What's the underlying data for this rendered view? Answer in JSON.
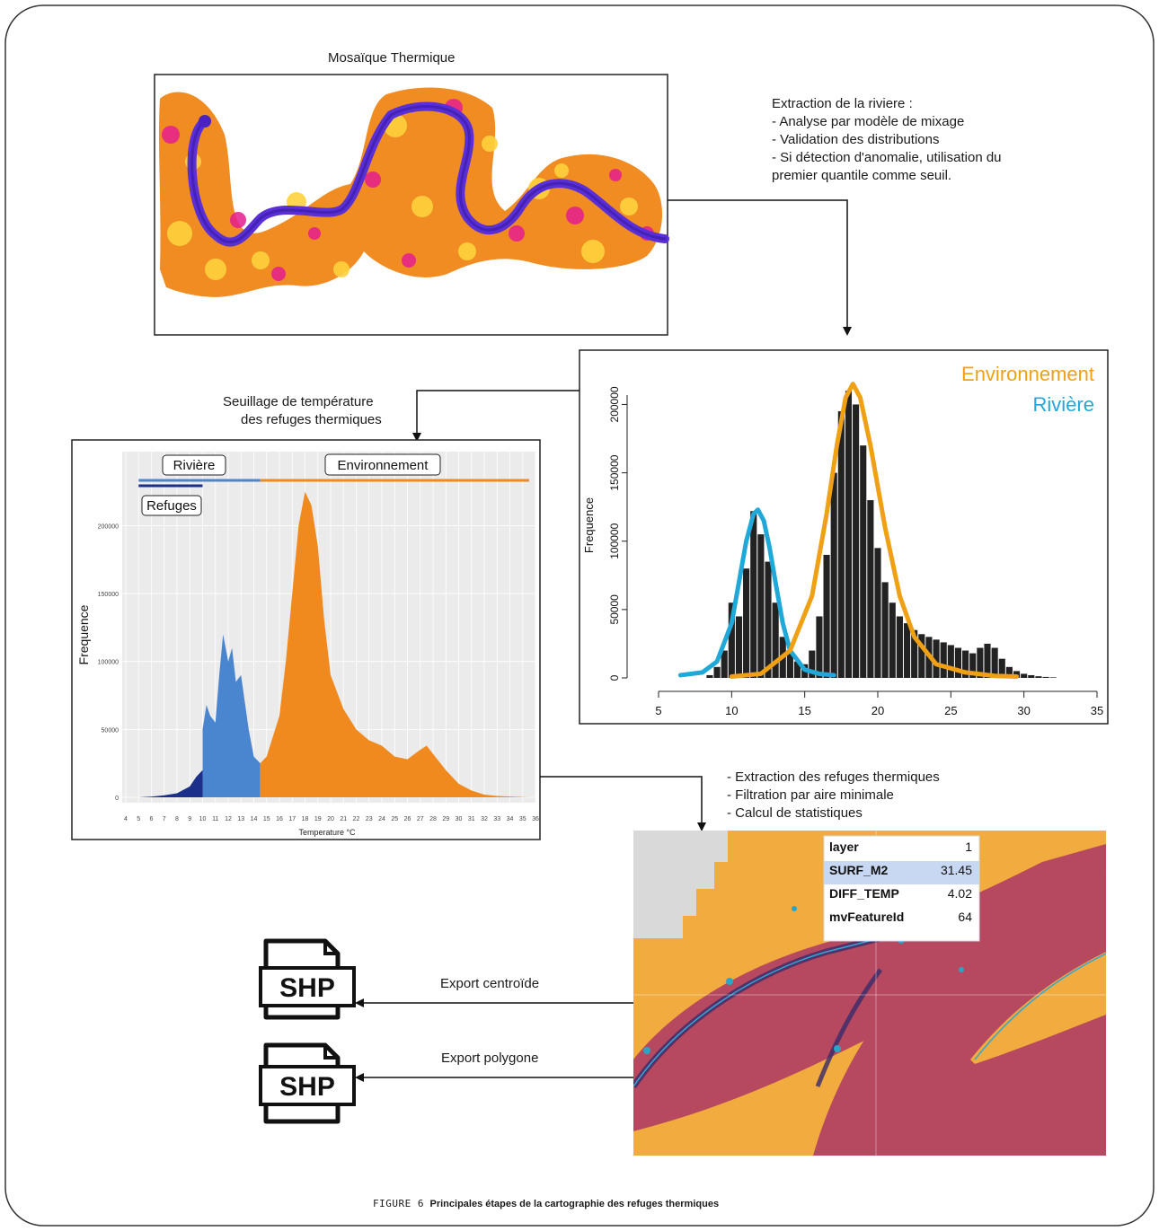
{
  "mosaic": {
    "title": "Mosaïque Thermique"
  },
  "extraction": {
    "title": "Extraction de la riviere :",
    "steps": [
      "- Analyse par modèle de mixage",
      "- Validation des distributions",
      "- Si détection d'anomalie, utilisation du",
      "premier quantile comme seuil."
    ]
  },
  "threshold": {
    "line1": "Seuillage de température",
    "line2": "des refuges thermiques"
  },
  "refuge_steps": [
    "- Extraction des refuges thermiques",
    "- Filtration par aire minimale",
    "- Calcul de statistiques"
  ],
  "export": {
    "centroid": "Export centroïde",
    "polygon": "Export polygone",
    "file_label": "SHP"
  },
  "attributes": [
    {
      "key": "layer",
      "value": "1"
    },
    {
      "key": "SURF_M2",
      "value": "31.45"
    },
    {
      "key": "DIFF_TEMP",
      "value": "4.02"
    },
    {
      "key": "mvFeatureId",
      "value": "64"
    }
  ],
  "caption": {
    "figure": "FIGURE",
    "number": "6",
    "text": "Principales étapes de la cartographie des refuges thermiques"
  },
  "colors": {
    "river_blue": "#20a8d8",
    "env_orange": "#f0a014",
    "refuge_navy": "#1c2f8a",
    "river_mid": "#4a86cf",
    "env_fill": "#f08a1e"
  },
  "chart_data": [
    {
      "type": "bar",
      "ylabel": "Frequence",
      "xlim": [
        5,
        35
      ],
      "ylim": [
        0,
        220000
      ],
      "x_ticks": [
        5,
        10,
        15,
        20,
        25,
        30,
        35
      ],
      "y_ticks": [
        0,
        50000,
        100000,
        150000,
        200000
      ],
      "legend": [
        "Environnement",
        "Rivière"
      ],
      "legend_placement": "top-right",
      "x": [
        8.5,
        9.0,
        9.5,
        10.0,
        10.5,
        11.0,
        11.5,
        12.0,
        12.5,
        13.0,
        13.5,
        14.0,
        14.5,
        15.0,
        15.5,
        16.0,
        16.5,
        17.0,
        17.5,
        18.0,
        18.5,
        19.0,
        19.5,
        20.0,
        20.5,
        21.0,
        21.5,
        22.0,
        22.5,
        23.0,
        23.5,
        24.0,
        24.5,
        25.0,
        25.5,
        26.0,
        26.5,
        27.0,
        27.5,
        28.0,
        28.5,
        29.0,
        29.5,
        30.0,
        30.5,
        31.0,
        31.5,
        32.0
      ],
      "values": [
        2000,
        8000,
        20000,
        55000,
        45000,
        80000,
        122000,
        105000,
        85000,
        55000,
        30000,
        18000,
        12000,
        10000,
        20000,
        45000,
        90000,
        150000,
        195000,
        210000,
        200000,
        170000,
        130000,
        95000,
        70000,
        55000,
        45000,
        40000,
        35000,
        32000,
        30000,
        28000,
        26000,
        24000,
        22000,
        20000,
        18000,
        22000,
        25000,
        22000,
        14000,
        8000,
        5000,
        3000,
        2000,
        1200,
        700,
        400
      ],
      "series": [
        {
          "name": "Rivière",
          "x": [
            6.5,
            8.0,
            9.0,
            10.0,
            10.5,
            11.0,
            11.5,
            11.8,
            12.2,
            12.6,
            13.0,
            13.5,
            14.0,
            15.0,
            16.0,
            17.0
          ],
          "values": [
            2000,
            4000,
            12000,
            40000,
            70000,
            100000,
            120000,
            123000,
            115000,
            95000,
            70000,
            40000,
            20000,
            6000,
            3000,
            2000
          ]
        },
        {
          "name": "Environnement",
          "x": [
            10.0,
            12.0,
            14.0,
            15.5,
            16.5,
            17.2,
            17.8,
            18.3,
            18.8,
            19.5,
            20.5,
            21.5,
            22.5,
            24.0,
            26.0,
            28.0,
            29.5
          ],
          "values": [
            1000,
            3000,
            20000,
            60000,
            120000,
            170000,
            205000,
            215000,
            205000,
            170000,
            110000,
            60000,
            30000,
            10000,
            4000,
            1500,
            1000
          ]
        }
      ]
    },
    {
      "type": "area",
      "ylabel": "Frequence",
      "xlabel": "Temperature °C",
      "xlim": [
        4,
        36
      ],
      "ylim": [
        0,
        230000
      ],
      "x_ticks": [
        4,
        5,
        6,
        7,
        8,
        9,
        10,
        11,
        12,
        13,
        14,
        15,
        16,
        17,
        18,
        19,
        20,
        21,
        22,
        23,
        24,
        25,
        26,
        27,
        28,
        29,
        30,
        31,
        32,
        33,
        34,
        35,
        36
      ],
      "y_ticks": [
        0,
        50000,
        100000,
        150000,
        200000
      ],
      "legend": [
        "Rivière",
        "Environnement",
        "Refuges"
      ],
      "thresholds": {
        "refuges_max": 10,
        "riviere_max": 14.5,
        "environnement_max": 35.5
      },
      "series": [
        {
          "name": "Refuges",
          "x": [
            5,
            6,
            7,
            8,
            9,
            9.5,
            10
          ],
          "values": [
            0,
            500,
            1500,
            3000,
            8000,
            15000,
            20000
          ]
        },
        {
          "name": "Rivière",
          "x": [
            10,
            10.3,
            10.6,
            11,
            11.3,
            11.6,
            12,
            12.3,
            12.6,
            13,
            13.3,
            13.6,
            14,
            14.5
          ],
          "values": [
            50000,
            68000,
            60000,
            55000,
            90000,
            120000,
            100000,
            110000,
            85000,
            90000,
            70000,
            50000,
            30000,
            25000
          ]
        },
        {
          "name": "Environnement",
          "x": [
            14.5,
            15,
            16,
            16.5,
            17,
            17.5,
            18,
            18.5,
            19,
            19.5,
            20,
            21,
            22,
            23,
            24,
            25,
            26,
            27,
            27.5,
            28,
            29,
            30,
            31,
            32,
            33,
            35.5
          ],
          "values": [
            25000,
            30000,
            60000,
            100000,
            150000,
            200000,
            225000,
            215000,
            185000,
            130000,
            90000,
            65000,
            50000,
            42000,
            38000,
            30000,
            28000,
            35000,
            38000,
            32000,
            20000,
            10000,
            5000,
            2000,
            1000,
            0
          ]
        }
      ]
    }
  ]
}
